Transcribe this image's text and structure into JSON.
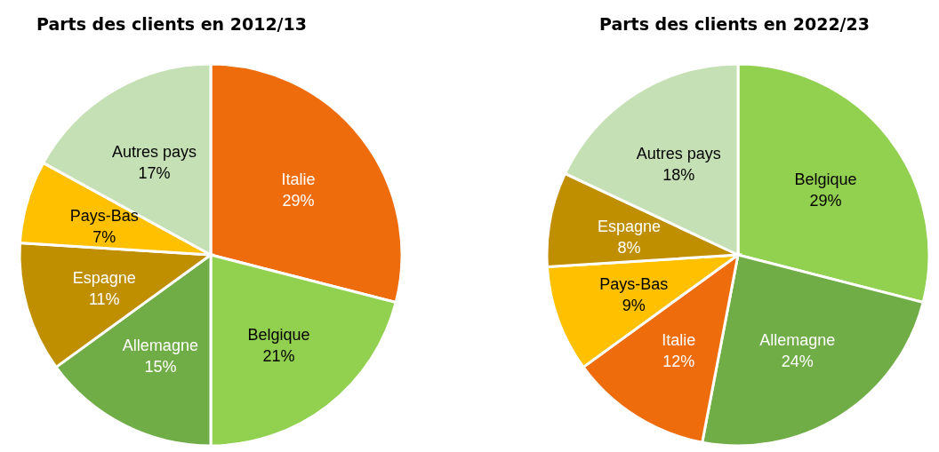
{
  "chart_data": [
    {
      "type": "pie",
      "title": "Parts des clients en 2012/13",
      "categories": [
        "Italie",
        "Belgique",
        "Allemagne",
        "Espagne",
        "Pays-Bas",
        "Autres pays"
      ],
      "values": [
        29,
        21,
        15,
        11,
        7,
        17
      ],
      "value_labels": [
        "29%",
        "21%",
        "15%",
        "11%",
        "7%",
        "17%"
      ],
      "colors": [
        "#ee6c0c",
        "#92d050",
        "#70ad47",
        "#bf8f00",
        "#ffc000",
        "#c5e0b4"
      ]
    },
    {
      "type": "pie",
      "title": "Parts des clients en 2022/23",
      "categories": [
        "Belgique",
        "Allemagne",
        "Italie",
        "Pays-Bas",
        "Espagne",
        "Autres pays"
      ],
      "values": [
        29,
        24,
        12,
        9,
        8,
        18
      ],
      "value_labels": [
        "29%",
        "24%",
        "12%",
        "9%",
        "8%",
        "18%"
      ],
      "colors": [
        "#92d050",
        "#70ad47",
        "#ee6c0c",
        "#ffc000",
        "#bf8f00",
        "#c5e0b4"
      ]
    }
  ]
}
